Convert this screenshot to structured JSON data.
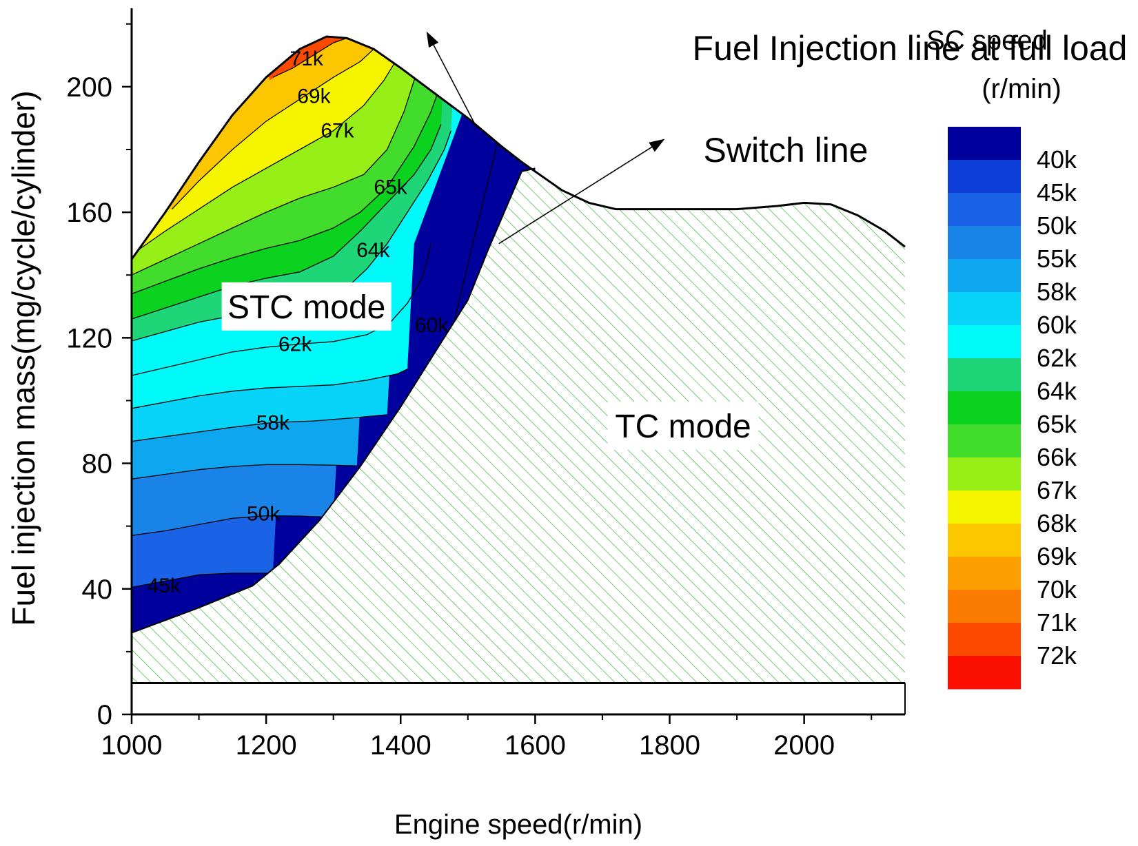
{
  "chart_data": {
    "type": "contour",
    "title": "",
    "xlabel": "Engine speed(r/min)",
    "ylabel": "Fuel injection mass(mg/cycle/cylinder)",
    "xlim": [
      1000,
      2150
    ],
    "ylim": [
      0,
      225
    ],
    "x_ticks": [
      1000,
      1200,
      1400,
      1600,
      1800,
      2000
    ],
    "y_ticks": [
      0,
      40,
      80,
      120,
      160,
      200
    ],
    "full_load_line": {
      "label": "Fuel Injection line at full load",
      "points": [
        [
          1000,
          145
        ],
        [
          1050,
          160
        ],
        [
          1100,
          176
        ],
        [
          1150,
          191
        ],
        [
          1200,
          203
        ],
        [
          1250,
          212
        ],
        [
          1290,
          216
        ],
        [
          1320,
          215.5
        ],
        [
          1360,
          212
        ],
        [
          1400,
          206
        ],
        [
          1450,
          198
        ],
        [
          1500,
          190
        ],
        [
          1550,
          181
        ],
        [
          1580,
          176
        ],
        [
          1600,
          173
        ],
        [
          1640,
          167
        ],
        [
          1680,
          163
        ],
        [
          1720,
          161
        ],
        [
          1800,
          161
        ],
        [
          1900,
          161
        ],
        [
          1960,
          162
        ],
        [
          2000,
          163
        ],
        [
          2040,
          162.5
        ],
        [
          2080,
          159
        ],
        [
          2120,
          154
        ],
        [
          2150,
          149
        ]
      ]
    },
    "switch_line": {
      "label": "Switch line",
      "points": [
        [
          1000,
          26
        ],
        [
          1100,
          34
        ],
        [
          1180,
          41
        ],
        [
          1220,
          48
        ],
        [
          1280,
          62
        ],
        [
          1340,
          79
        ],
        [
          1400,
          98
        ],
        [
          1450,
          115
        ],
        [
          1500,
          132
        ],
        [
          1530,
          148
        ],
        [
          1560,
          163
        ],
        [
          1580,
          173
        ],
        [
          1600,
          174
        ]
      ]
    },
    "contour_lines": [
      {
        "label": "45k",
        "label_xy": [
          1048,
          41
        ],
        "points": [
          [
            1000,
            40.5
          ],
          [
            1050,
            42.5
          ],
          [
            1100,
            44.5
          ],
          [
            1150,
            45
          ],
          [
            1210,
            45
          ]
        ]
      },
      {
        "label": "50k",
        "label_xy": [
          1196,
          64
        ],
        "points": [
          [
            1000,
            57
          ],
          [
            1050,
            58.5
          ],
          [
            1100,
            60.5
          ],
          [
            1150,
            62.5
          ],
          [
            1200,
            63.3
          ],
          [
            1250,
            63.2
          ],
          [
            1300,
            62.8
          ]
        ]
      },
      {
        "label": "",
        "label_xy": null,
        "points": [
          [
            1000,
            75
          ],
          [
            1050,
            76.5
          ],
          [
            1100,
            78
          ],
          [
            1150,
            79
          ],
          [
            1200,
            79.6
          ],
          [
            1250,
            79.6
          ],
          [
            1300,
            79.4
          ],
          [
            1335,
            79.2
          ]
        ]
      },
      {
        "label": "58k",
        "label_xy": [
          1210,
          93
        ],
        "points": [
          [
            1000,
            87
          ],
          [
            1050,
            88.5
          ],
          [
            1100,
            90
          ],
          [
            1150,
            91.5
          ],
          [
            1210,
            93
          ],
          [
            1270,
            93.5
          ],
          [
            1330,
            94.5
          ],
          [
            1380,
            95.5
          ]
        ]
      },
      {
        "label": "",
        "label_xy": null,
        "points": [
          [
            1000,
            97.5
          ],
          [
            1050,
            99.5
          ],
          [
            1100,
            101.5
          ],
          [
            1150,
            103
          ],
          [
            1200,
            104
          ],
          [
            1250,
            104.5
          ],
          [
            1300,
            105
          ],
          [
            1350,
            106.5
          ],
          [
            1395,
            108.5
          ],
          [
            1410,
            110
          ]
        ]
      },
      {
        "label": "",
        "label_xy": null,
        "points": [
          [
            1000,
            108
          ],
          [
            1050,
            110.5
          ],
          [
            1100,
            113
          ],
          [
            1150,
            115.5
          ],
          [
            1200,
            117
          ],
          [
            1250,
            118
          ],
          [
            1300,
            118.8
          ],
          [
            1350,
            121
          ],
          [
            1385,
            125
          ],
          [
            1410,
            131
          ],
          [
            1430,
            138
          ],
          [
            1440,
            145
          ],
          [
            1445,
            150
          ]
        ]
      },
      {
        "label": "62k",
        "label_xy": [
          1243,
          118
        ],
        "points": [
          [
            1000,
            119
          ],
          [
            1050,
            122
          ],
          [
            1100,
            125
          ],
          [
            1150,
            127
          ],
          [
            1200,
            128
          ],
          [
            1260,
            130
          ],
          [
            1310,
            134
          ],
          [
            1350,
            142
          ],
          [
            1380,
            150
          ],
          [
            1410,
            160
          ],
          [
            1440,
            170
          ],
          [
            1465,
            180
          ],
          [
            1475,
            186
          ]
        ]
      },
      {
        "label": "60k",
        "label_xy": [
          1446,
          124
        ],
        "points": [
          [
            1468,
            115
          ],
          [
            1485,
            130
          ],
          [
            1505,
            148
          ],
          [
            1522,
            163
          ],
          [
            1537,
            176
          ],
          [
            1545,
            183
          ]
        ]
      },
      {
        "label": "",
        "label_xy": null,
        "points": [
          [
            1000,
            126
          ],
          [
            1050,
            129.5
          ],
          [
            1100,
            133
          ],
          [
            1150,
            136.5
          ],
          [
            1200,
            139
          ],
          [
            1250,
            141
          ],
          [
            1300,
            146
          ],
          [
            1340,
            154
          ],
          [
            1380,
            163
          ],
          [
            1420,
            172
          ],
          [
            1445,
            180
          ],
          [
            1460,
            188
          ]
        ]
      },
      {
        "label": "64k",
        "label_xy": [
          1359,
          148
        ],
        "points": [
          [
            1000,
            134
          ],
          [
            1050,
            138
          ],
          [
            1100,
            142
          ],
          [
            1150,
            145.5
          ],
          [
            1200,
            148.5
          ],
          [
            1250,
            151
          ],
          [
            1300,
            155
          ],
          [
            1340,
            160
          ],
          [
            1380,
            168
          ],
          [
            1420,
            181
          ],
          [
            1445,
            192
          ],
          [
            1455,
            198
          ]
        ]
      },
      {
        "label": "65k",
        "label_xy": [
          1385,
          168
        ],
        "points": [
          [
            1000,
            140
          ],
          [
            1050,
            145
          ],
          [
            1100,
            150
          ],
          [
            1150,
            155
          ],
          [
            1200,
            160
          ],
          [
            1250,
            164.5
          ],
          [
            1300,
            168
          ],
          [
            1345,
            172
          ],
          [
            1380,
            180
          ],
          [
            1405,
            192
          ],
          [
            1420,
            202
          ],
          [
            1425,
            206
          ]
        ]
      },
      {
        "label": "67k",
        "label_xy": [
          1306,
          186
        ],
        "points": [
          [
            1000,
            146.5
          ],
          [
            1050,
            154
          ],
          [
            1100,
            161
          ],
          [
            1150,
            168
          ],
          [
            1200,
            174
          ],
          [
            1250,
            180
          ],
          [
            1300,
            186
          ],
          [
            1345,
            194
          ],
          [
            1375,
            202
          ],
          [
            1395,
            209
          ],
          [
            1400,
            210
          ]
        ]
      },
      {
        "label": "69k",
        "label_xy": [
          1271,
          197
        ],
        "points": [
          [
            1060,
            161
          ],
          [
            1100,
            170
          ],
          [
            1150,
            180
          ],
          [
            1200,
            189
          ],
          [
            1250,
            196
          ],
          [
            1300,
            203
          ],
          [
            1340,
            208
          ],
          [
            1360,
            212
          ]
        ]
      },
      {
        "label": "71k",
        "label_xy": [
          1260,
          209
        ],
        "points": [
          [
            1210,
            203
          ],
          [
            1240,
            206
          ],
          [
            1270,
            210
          ],
          [
            1300,
            214
          ],
          [
            1320,
            215.5
          ]
        ]
      }
    ],
    "annotations": [
      {
        "text": "Fuel Injection line at full load",
        "anchor": [
          1513,
          187
        ],
        "text_xy": [
          1440,
          217
        ]
      },
      {
        "text": "Switch line",
        "anchor": [
          1546,
          150
        ],
        "text_xy": [
          1790,
          183
        ]
      },
      {
        "text": "STC mode",
        "xy": [
          1260,
          130
        ],
        "boxed": true
      },
      {
        "text": "TC mode",
        "xy": [
          1820,
          92
        ],
        "boxed": true
      }
    ],
    "colorbar": {
      "title": [
        "SC speed",
        "(r/min)"
      ],
      "levels": [
        {
          "label": "40k",
          "color": "#00009c"
        },
        {
          "label": "45k",
          "color": "#0d3ed8"
        },
        {
          "label": "50k",
          "color": "#1b63e6"
        },
        {
          "label": "55k",
          "color": "#1a83e8"
        },
        {
          "label": "58k",
          "color": "#0fa6f0"
        },
        {
          "label": "60k",
          "color": "#08d4fa"
        },
        {
          "label": "62k",
          "color": "#00fafa"
        },
        {
          "label": "64k",
          "color": "#1ed678"
        },
        {
          "label": "65k",
          "color": "#0bd11f"
        },
        {
          "label": "66k",
          "color": "#42dc2c"
        },
        {
          "label": "67k",
          "color": "#96f018"
        },
        {
          "label": "68k",
          "color": "#f5f500"
        },
        {
          "label": "69k",
          "color": "#fcc600"
        },
        {
          "label": "70k",
          "color": "#fd9f00"
        },
        {
          "label": "71k",
          "color": "#fb7c00"
        },
        {
          "label": "72k",
          "color": "#fb4a00"
        },
        {
          "label": "",
          "color": "#fa0f00"
        }
      ]
    },
    "fill_bands": [
      {
        "color": "#00009c",
        "bottom_line": "switch",
        "top_line": "contour:0"
      },
      {
        "color": "#1b63e6",
        "bottom_line": "contour:0",
        "top_line": "contour:1"
      },
      {
        "color": "#1a83e8",
        "bottom_line": "contour:1",
        "top_line": "contour:2"
      },
      {
        "color": "#0fa6f0",
        "bottom_line": "contour:2",
        "top_line": "contour:3"
      },
      {
        "color": "#08d4fa",
        "bottom_line": "contour:3",
        "top_line": "contour:4"
      },
      {
        "color": "#00fafa",
        "bottom_line": "contour:4",
        "top_line": "contour:6"
      },
      {
        "color": "#1ed678",
        "bottom_line": "contour:6",
        "top_line": "contour:8"
      },
      {
        "color": "#0bd11f",
        "bottom_line": "contour:8",
        "top_line": "contour:9"
      },
      {
        "color": "#42dc2c",
        "bottom_line": "contour:9",
        "top_line": "contour:10"
      },
      {
        "color": "#96f018",
        "bottom_line": "contour:10",
        "top_line": "contour:11"
      },
      {
        "color": "#f5f500",
        "bottom_line": "contour:11",
        "top_line": "contour:12"
      },
      {
        "color": "#fcc600",
        "bottom_line": "contour:12",
        "top_line": "contour:13"
      },
      {
        "color": "#fd9f00",
        "bottom_line": "contour:13",
        "top_line": "full"
      },
      {
        "color": "#fb4a00",
        "bottom_line": "contour:13",
        "top_line": "full"
      }
    ],
    "hatch_color": "#33bb33",
    "floor_line_y": 10
  }
}
